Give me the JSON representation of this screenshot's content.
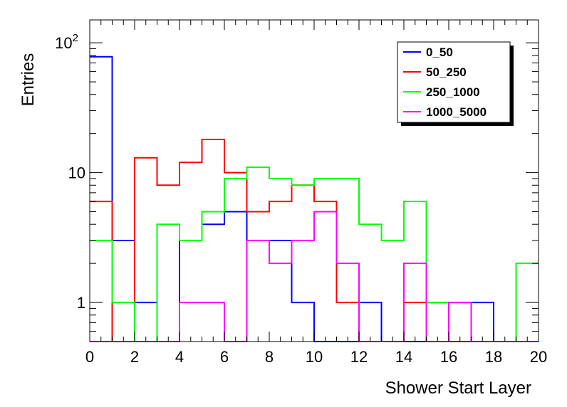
{
  "chart_data": {
    "type": "histogram",
    "xlabel": "Shower Start Layer",
    "ylabel": "Entries",
    "xlim": [
      0,
      20
    ],
    "ylim": [
      0.5,
      150
    ],
    "yscale": "log",
    "grid": false,
    "legend_position": "top-right",
    "bin_edges": [
      0,
      1,
      2,
      3,
      4,
      5,
      6,
      7,
      8,
      9,
      10,
      11,
      12,
      13,
      14,
      15,
      16,
      17,
      18,
      19,
      20
    ],
    "x_ticks": [
      "0",
      "2",
      "4",
      "6",
      "8",
      "10",
      "12",
      "14",
      "16",
      "18",
      "20"
    ],
    "y_ticks": [
      {
        "value": 1,
        "base": "1",
        "exp": ""
      },
      {
        "value": 10,
        "base": "10",
        "exp": ""
      },
      {
        "value": 100,
        "base": "10",
        "exp": "2"
      }
    ],
    "series": [
      {
        "name": "0_50",
        "color": "#0000ff",
        "values": [
          78,
          3,
          1,
          0,
          3,
          4,
          5,
          3,
          3,
          1,
          0,
          0,
          1,
          0,
          0,
          1,
          1,
          1,
          0,
          0
        ]
      },
      {
        "name": "50_250",
        "color": "#ff0000",
        "values": [
          6,
          0,
          13,
          8,
          12,
          18,
          10,
          5,
          6,
          8,
          6,
          1,
          0,
          0,
          1,
          1,
          0,
          0,
          0,
          0
        ]
      },
      {
        "name": "250_1000",
        "color": "#00ff00",
        "values": [
          3,
          1,
          0,
          4,
          3,
          5,
          9,
          11,
          9,
          8,
          9,
          9,
          4,
          3,
          6,
          1,
          1,
          0,
          0,
          2
        ]
      },
      {
        "name": "1000_5000",
        "color": "#ff00ff",
        "values": [
          0,
          0,
          0,
          0,
          1,
          1,
          0,
          3,
          2,
          3,
          5,
          2,
          0,
          0,
          2,
          0,
          1,
          0,
          0,
          0
        ]
      }
    ]
  }
}
